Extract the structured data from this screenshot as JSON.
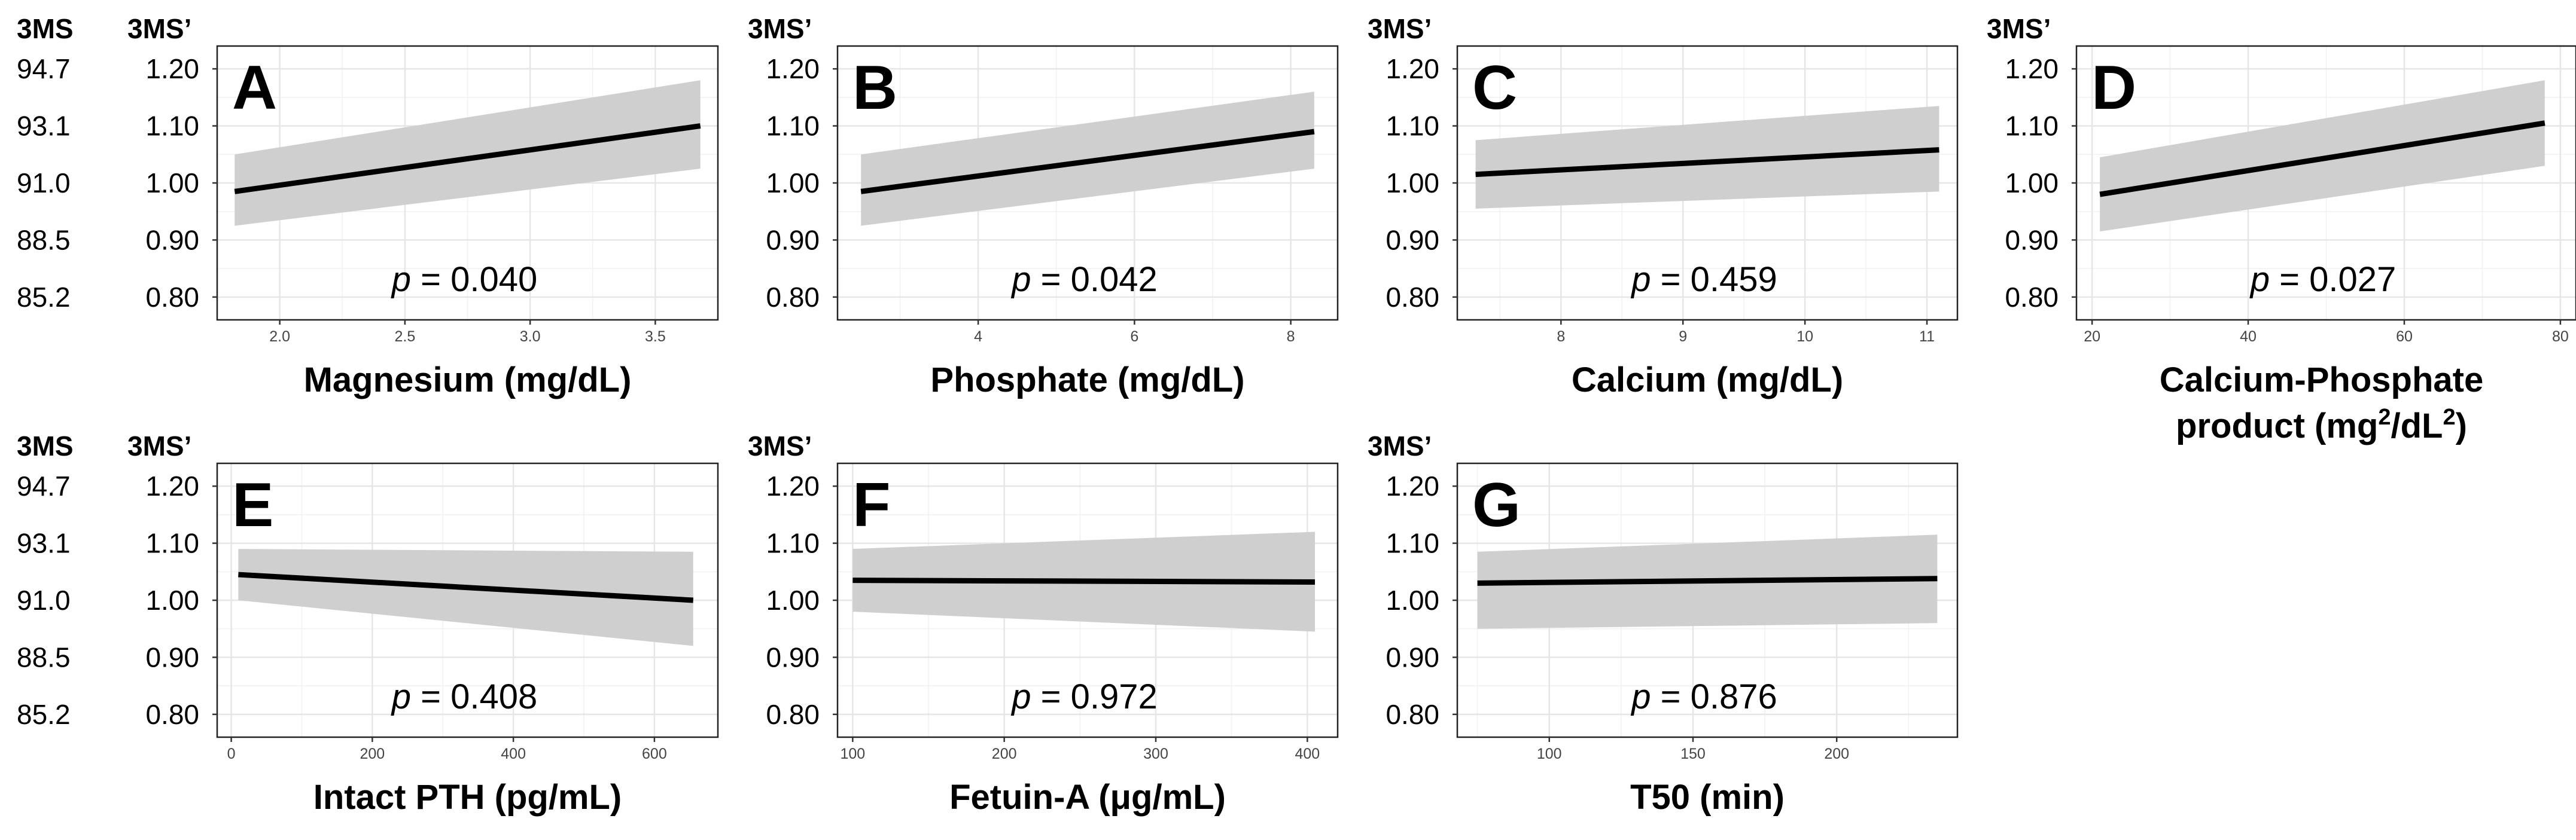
{
  "chart_data": [
    {
      "panel": "A",
      "type": "line",
      "y_heading_left": "3MS",
      "y_heading_right": "3MS’",
      "xlabel": "Magnesium (mg/dL)",
      "xlim": [
        1.75,
        3.75
      ],
      "x_ticks": [
        "2.0",
        "2.5",
        "3.0",
        "3.5"
      ],
      "x_tick_values": [
        2.0,
        2.5,
        3.0,
        3.5
      ],
      "ylim": [
        0.76,
        1.24
      ],
      "y_ticks": [
        "1.20",
        "1.10",
        "1.00",
        "0.90",
        "0.80"
      ],
      "y_tick_values": [
        1.2,
        1.1,
        1.0,
        0.9,
        0.8
      ],
      "y2_ticks": [
        "94.7",
        "93.1",
        "91.0",
        "88.5",
        "85.2"
      ],
      "x": [
        1.82,
        3.68
      ],
      "fit": [
        0.985,
        1.1
      ],
      "ci_lower": [
        0.925,
        1.025
      ],
      "ci_upper": [
        1.05,
        1.18
      ],
      "p_value": "0.040",
      "p_label": "p",
      "p_equals": " = "
    },
    {
      "panel": "B",
      "type": "line",
      "y_heading_right": "3MS’",
      "xlabel": "Phosphate (mg/dL)",
      "xlim": [
        2.2,
        8.6
      ],
      "x_ticks": [
        "4",
        "6",
        "8"
      ],
      "x_tick_values": [
        4,
        6,
        8
      ],
      "ylim": [
        0.76,
        1.24
      ],
      "y_ticks": [
        "1.20",
        "1.10",
        "1.00",
        "0.90",
        "0.80"
      ],
      "y_tick_values": [
        1.2,
        1.1,
        1.0,
        0.9,
        0.8
      ],
      "x": [
        2.5,
        8.3
      ],
      "fit": [
        0.985,
        1.09
      ],
      "ci_lower": [
        0.925,
        1.025
      ],
      "ci_upper": [
        1.05,
        1.16
      ],
      "p_value": "0.042",
      "p_label": "p",
      "p_equals": " = "
    },
    {
      "panel": "C",
      "type": "line",
      "y_heading_right": "3MS’",
      "xlabel": "Calcium (mg/dL)",
      "xlim": [
        7.15,
        11.25
      ],
      "x_ticks": [
        "8",
        "9",
        "10",
        "11"
      ],
      "x_tick_values": [
        8,
        9,
        10,
        11
      ],
      "ylim": [
        0.76,
        1.24
      ],
      "y_ticks": [
        "1.20",
        "1.10",
        "1.00",
        "0.90",
        "0.80"
      ],
      "y_tick_values": [
        1.2,
        1.1,
        1.0,
        0.9,
        0.8
      ],
      "x": [
        7.3,
        11.1
      ],
      "fit": [
        1.015,
        1.058
      ],
      "ci_lower": [
        0.955,
        0.985
      ],
      "ci_upper": [
        1.075,
        1.135
      ],
      "p_value": "0.459",
      "p_label": "p",
      "p_equals": " = "
    },
    {
      "panel": "D",
      "type": "line",
      "y_heading_right": "3MS’",
      "xlabel_line1": "Calcium-Phosphate",
      "xlabel_pre": "product (mg",
      "xlabel_sup1": "2",
      "xlabel_mid": "/dL",
      "xlabel_sup2": "2",
      "xlabel_post": ")",
      "xlim": [
        18,
        82
      ],
      "x_ticks": [
        "20",
        "40",
        "60",
        "80"
      ],
      "x_tick_values": [
        20,
        40,
        60,
        80
      ],
      "ylim": [
        0.76,
        1.24
      ],
      "y_ticks": [
        "1.20",
        "1.10",
        "1.00",
        "0.90",
        "0.80"
      ],
      "y_tick_values": [
        1.2,
        1.1,
        1.0,
        0.9,
        0.8
      ],
      "x": [
        21,
        78
      ],
      "fit": [
        0.98,
        1.105
      ],
      "ci_lower": [
        0.915,
        1.03
      ],
      "ci_upper": [
        1.045,
        1.18
      ],
      "p_value": "0.027",
      "p_label": "p",
      "p_equals": " = "
    },
    {
      "panel": "E",
      "type": "line",
      "y_heading_left": "3MS",
      "y_heading_right": "3MS’",
      "xlabel": "Intact PTH (pg/mL)",
      "xlim": [
        -20,
        690
      ],
      "x_ticks": [
        "0",
        "200",
        "400",
        "600"
      ],
      "x_tick_values": [
        0,
        200,
        400,
        600
      ],
      "ylim": [
        0.76,
        1.24
      ],
      "y_ticks": [
        "1.20",
        "1.10",
        "1.00",
        "0.90",
        "0.80"
      ],
      "y_tick_values": [
        1.2,
        1.1,
        1.0,
        0.9,
        0.8
      ],
      "y2_ticks": [
        "94.7",
        "93.1",
        "91.0",
        "88.5",
        "85.2"
      ],
      "x": [
        10,
        655
      ],
      "fit": [
        1.045,
        1.0
      ],
      "ci_lower": [
        1.0,
        0.92
      ],
      "ci_upper": [
        1.09,
        1.085
      ],
      "p_value": "0.408",
      "p_label": "p",
      "p_equals": " = "
    },
    {
      "panel": "F",
      "type": "line",
      "y_heading_right": "3MS’",
      "xlabel": "Fetuin-A (μg/mL)",
      "xlim": [
        90,
        420
      ],
      "x_ticks": [
        "100",
        "200",
        "300",
        "400"
      ],
      "x_tick_values": [
        100,
        200,
        300,
        400
      ],
      "ylim": [
        0.76,
        1.24
      ],
      "y_ticks": [
        "1.20",
        "1.10",
        "1.00",
        "0.90",
        "0.80"
      ],
      "y_tick_values": [
        1.2,
        1.1,
        1.0,
        0.9,
        0.8
      ],
      "x": [
        100,
        405
      ],
      "fit": [
        1.035,
        1.032
      ],
      "ci_lower": [
        0.98,
        0.945
      ],
      "ci_upper": [
        1.09,
        1.12
      ],
      "p_value": "0.972",
      "p_label": "p",
      "p_equals": " = "
    },
    {
      "panel": "G",
      "type": "line",
      "y_heading_right": "3MS’",
      "xlabel": "T50 (min)",
      "xlim": [
        68,
        242
      ],
      "x_ticks": [
        "100",
        "150",
        "200"
      ],
      "x_tick_values": [
        100,
        150,
        200
      ],
      "ylim": [
        0.76,
        1.24
      ],
      "y_ticks": [
        "1.20",
        "1.10",
        "1.00",
        "0.90",
        "0.80"
      ],
      "y_tick_values": [
        1.2,
        1.1,
        1.0,
        0.9,
        0.8
      ],
      "x": [
        75,
        235
      ],
      "fit": [
        1.03,
        1.038
      ],
      "ci_lower": [
        0.95,
        0.96
      ],
      "ci_upper": [
        1.085,
        1.115
      ],
      "p_value": "0.876",
      "p_label": "p",
      "p_equals": " = "
    }
  ]
}
